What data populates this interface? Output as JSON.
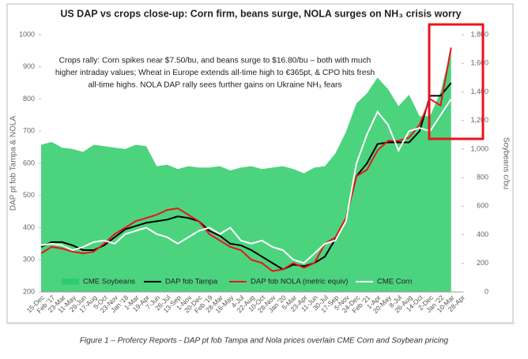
{
  "chart_data": {
    "type": "line",
    "title": "US DAP vs crops close-up: Corn firm, beans surge, NOLA surges on NH₃ crisis worry",
    "annotation_lines": [
      "Crops rally: Corn spikes near $7.50/bu, and beans surge to $16.80/bu – both with much",
      "higher intraday values; Wheat in Europe extends all-time high to €365pt, & CPO hits fresh",
      "all-time highs. NOLA DAP rally sees further gains on Ukraine NH₃ fears"
    ],
    "ylabel": "DAP pt fob Tampa & NOLA",
    "y2label": "Soybeans c/bu",
    "caption": "Figure 1 – Profercy Reports - DAP pt fob Tampa and Nola prices overlain CME Corn and Soybean pricing",
    "categories": [
      "15-Dec",
      "Feb '17",
      "23-Mar",
      "11-May",
      "29-Jun",
      "17-Aug",
      "5-Oct",
      "23-Nov",
      "Jan '18",
      "1-Mar",
      "19-Apr",
      "7-Jun",
      "26-Jul",
      "13-Sep",
      "1-Nov",
      "20-Dec",
      "Feb '19",
      "28-Mar",
      "16-May",
      "4-Jul",
      "22-Aug",
      "10-Oct",
      "28-Nov",
      "Jan '20",
      "5-Mar",
      "23-Apr",
      "11-Jun",
      "30-Jul",
      "17-Sep",
      "5-Nov",
      "24-Dec",
      "Feb '21",
      "1-Apr",
      "20-May",
      "8-Jul",
      "26-Aug",
      "14-Oct",
      "2-Dec",
      "Jan '22",
      "10-Mar",
      "28-Apr"
    ],
    "series": [
      {
        "name": "CME Soybeans",
        "color": "#4cd37e",
        "kind": "area",
        "axis": "y2",
        "values": [
          1030,
          1050,
          1010,
          1000,
          980,
          1030,
          1020,
          1010,
          1000,
          1030,
          1020,
          880,
          890,
          860,
          880,
          870,
          870,
          880,
          850,
          870,
          880,
          860,
          870,
          880,
          860,
          830,
          870,
          880,
          970,
          1120,
          1320,
          1390,
          1500,
          1420,
          1300,
          1380,
          1230,
          1230,
          1400,
          1700,
          null
        ]
      },
      {
        "name": "DAP fob Tampa",
        "color": "#000000",
        "kind": "line",
        "values": [
          340,
          355,
          355,
          345,
          330,
          330,
          345,
          370,
          395,
          405,
          415,
          420,
          425,
          435,
          430,
          420,
          390,
          375,
          350,
          345,
          330,
          310,
          290,
          270,
          285,
          280,
          290,
          310,
          365,
          430,
          560,
          600,
          660,
          665,
          665,
          665,
          700,
          810,
          810,
          850,
          null
        ]
      },
      {
        "name": "DAP fob NOLA (metric equiv)",
        "color": "#e8141b",
        "kind": "line",
        "values": [
          320,
          340,
          335,
          325,
          320,
          325,
          350,
          380,
          400,
          420,
          430,
          440,
          455,
          460,
          440,
          420,
          380,
          360,
          340,
          330,
          300,
          290,
          265,
          270,
          290,
          275,
          290,
          350,
          370,
          430,
          560,
          580,
          640,
          670,
          670,
          680,
          720,
          800,
          780,
          960,
          null
        ]
      },
      {
        "name": "CME Corn",
        "color": "#ffffff",
        "kind": "line",
        "values": [
          345,
          350,
          345,
          330,
          340,
          355,
          360,
          350,
          380,
          390,
          400,
          380,
          370,
          350,
          370,
          390,
          400,
          380,
          400,
          360,
          350,
          360,
          340,
          330,
          300,
          290,
          320,
          350,
          360,
          420,
          600,
          690,
          760,
          720,
          640,
          700,
          710,
          700,
          750,
          800,
          null
        ]
      }
    ],
    "ylim": [
      200,
      1000
    ],
    "yticks": [
      200,
      300,
      400,
      500,
      600,
      700,
      800,
      900,
      1000
    ],
    "y2lim": [
      0,
      1800
    ],
    "y2ticks": [
      0,
      200,
      400,
      600,
      800,
      {
        "value": 1000,
        "label": "1,000"
      },
      {
        "value": 1200,
        "label": "1,200"
      },
      {
        "value": 1400,
        "label": "1,400"
      },
      {
        "value": 1600,
        "label": "1,600"
      },
      {
        "value": 1800,
        "label": "1,800"
      }
    ]
  }
}
